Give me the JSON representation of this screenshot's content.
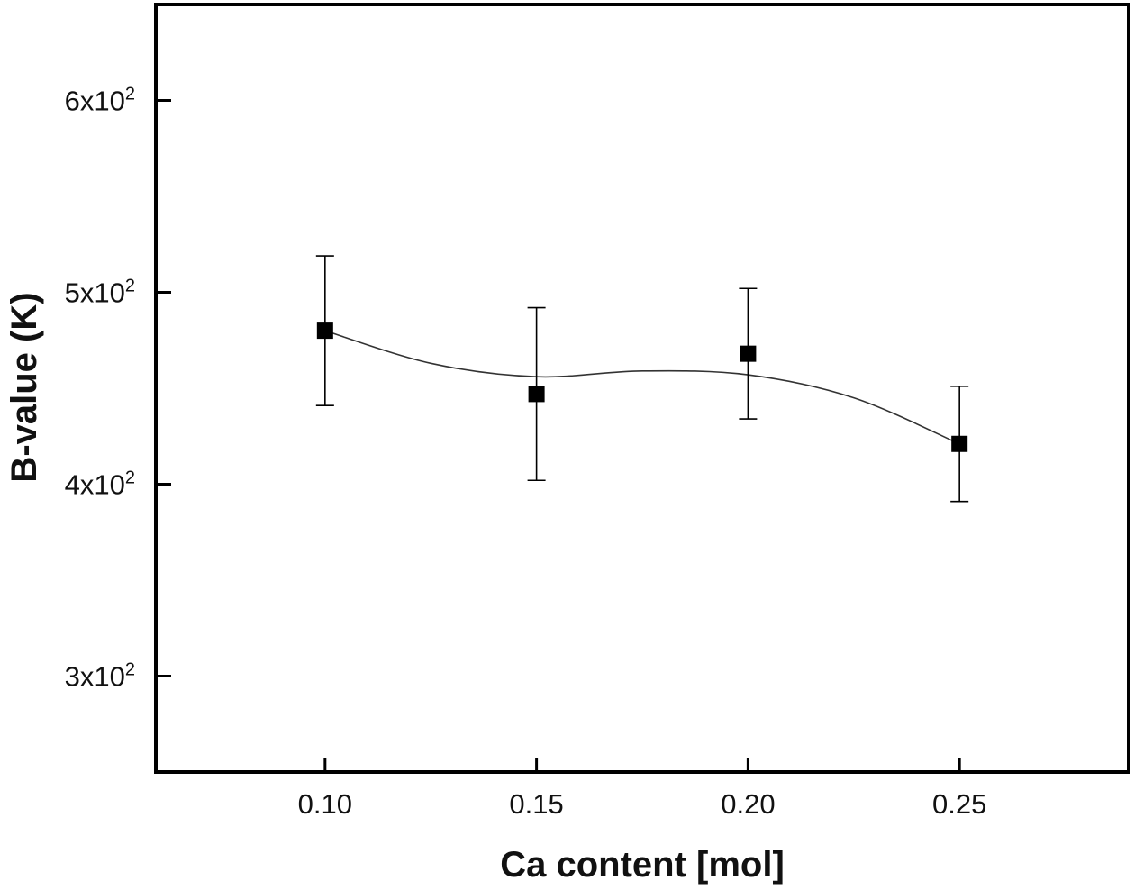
{
  "chart_data": {
    "type": "scatter",
    "title": "",
    "xlabel": "Ca content [mol]",
    "ylabel": "B-value (K)",
    "xlim": [
      0.06,
      0.29
    ],
    "ylim": [
      250,
      650
    ],
    "grid": false,
    "x_ticks": [
      {
        "value": 0.1,
        "label": "0.10"
      },
      {
        "value": 0.15,
        "label": "0.15"
      },
      {
        "value": 0.2,
        "label": "0.20"
      },
      {
        "value": 0.25,
        "label": "0.25"
      }
    ],
    "y_ticks": [
      {
        "value": 300,
        "mantissa": "3x10",
        "exponent": "2"
      },
      {
        "value": 400,
        "mantissa": "4x10",
        "exponent": "2"
      },
      {
        "value": 500,
        "mantissa": "5x10",
        "exponent": "2"
      },
      {
        "value": 600,
        "mantissa": "6x10",
        "exponent": "2"
      }
    ],
    "series": [
      {
        "name": "B-value",
        "marker": "square",
        "color": "#000000",
        "x": [
          0.1,
          0.15,
          0.2,
          0.25
        ],
        "y": [
          480,
          447,
          468,
          421
        ],
        "error": [
          39,
          45,
          34,
          30
        ]
      }
    ],
    "fit_curve": {
      "color": "#333333",
      "x": [
        0.1,
        0.125,
        0.15,
        0.175,
        0.2,
        0.225,
        0.25
      ],
      "y": [
        480,
        463,
        456,
        459,
        457,
        445,
        421
      ]
    }
  }
}
